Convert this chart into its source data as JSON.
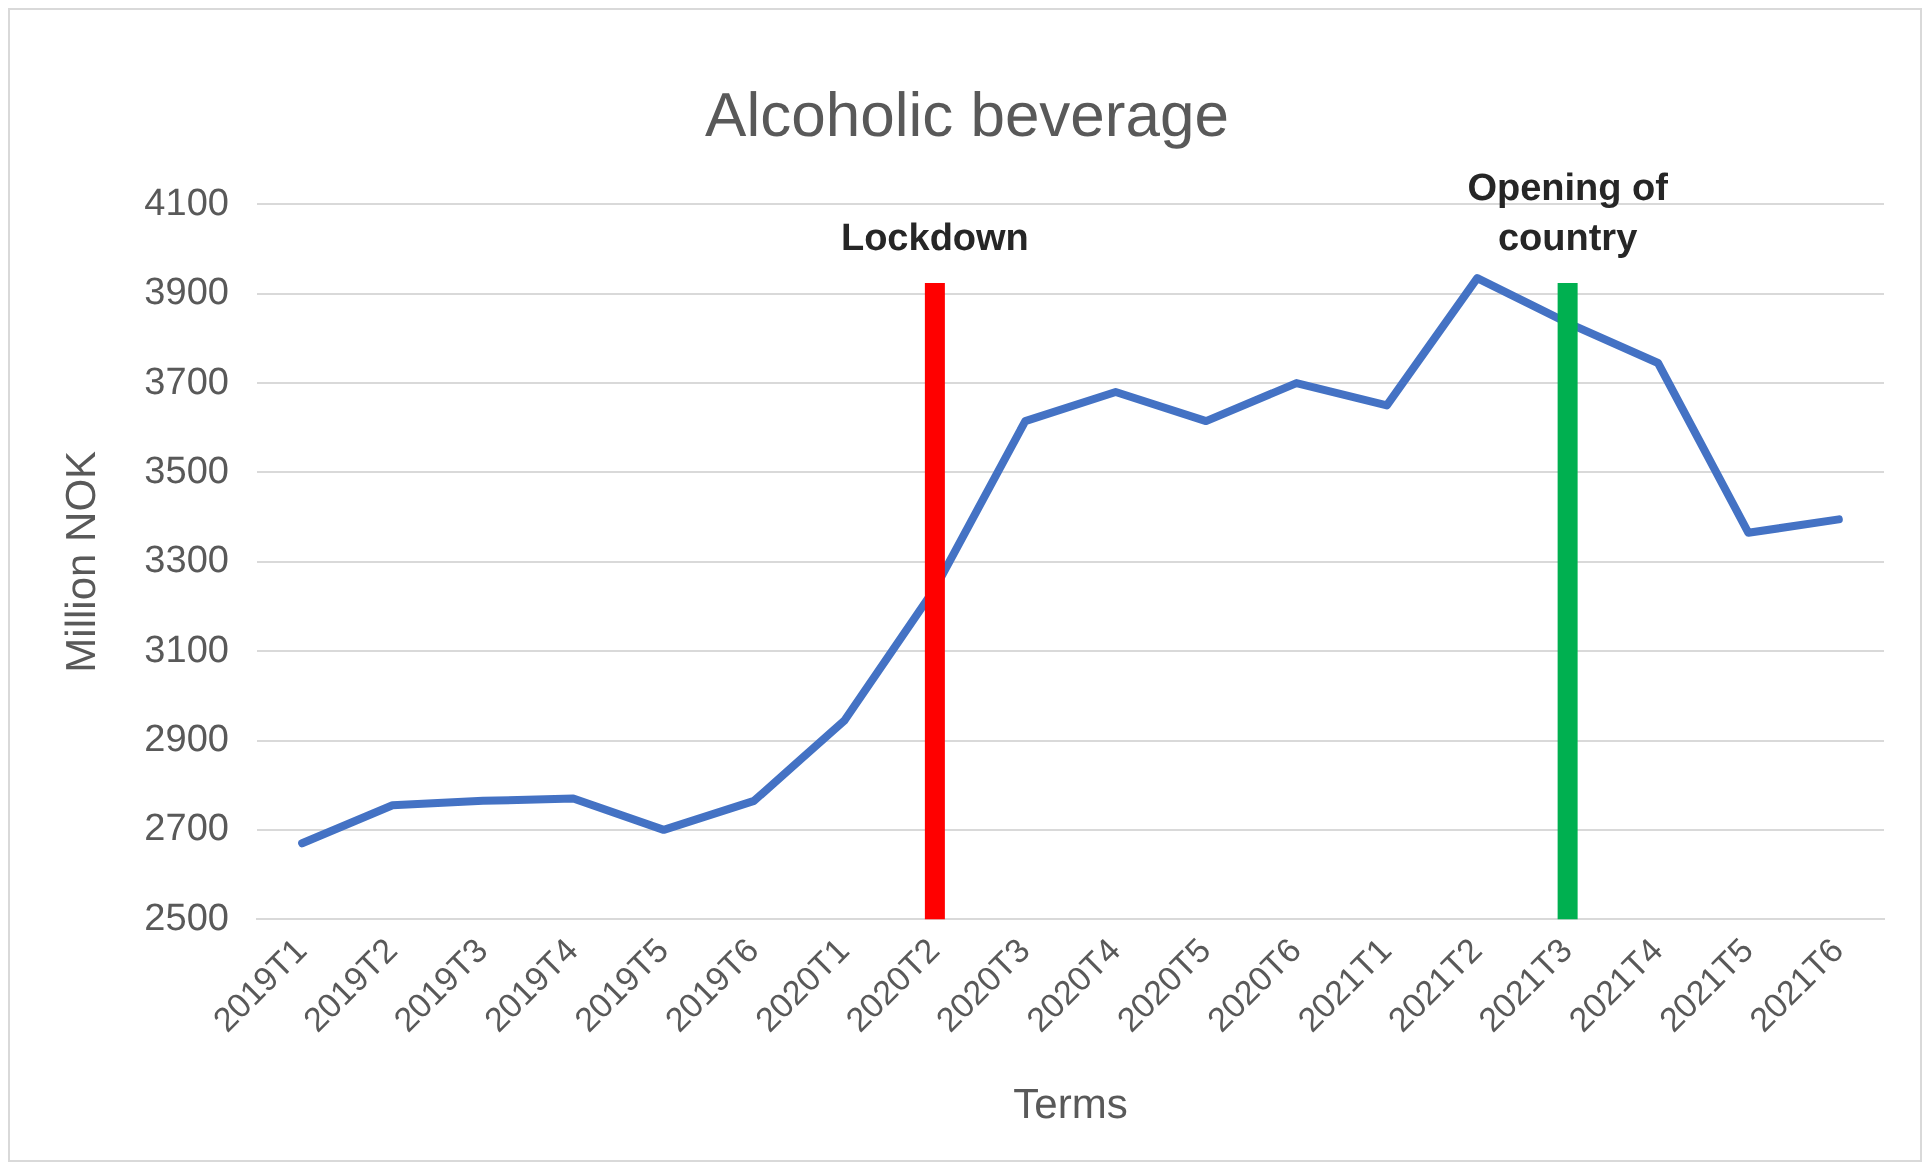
{
  "chart_data": {
    "type": "line",
    "title": "Alcoholic beverage",
    "xlabel": "Terms",
    "ylabel": "Million NOK",
    "categories": [
      "2019T1",
      "2019T2",
      "2019T3",
      "2019T4",
      "2019T5",
      "2019T6",
      "2020T1",
      "2020T2",
      "2020T3",
      "2020T4",
      "2020T5",
      "2020T6",
      "2021T1",
      "2021T2",
      "2021T3",
      "2021T4",
      "2021T5",
      "2021T6"
    ],
    "series": [
      {
        "color": "#4472c4",
        "values": [
          2670,
          2755,
          2765,
          2770,
          2700,
          2765,
          2945,
          3240,
          3615,
          3680,
          3615,
          3700,
          3650,
          3935,
          3835,
          3745,
          3365,
          3395
        ]
      }
    ],
    "ylim": [
      2500,
      4100
    ],
    "yticks": [
      2500,
      2700,
      2900,
      3100,
      3300,
      3500,
      3700,
      3900,
      4100
    ],
    "grid": "y",
    "legend": false,
    "marker": "none",
    "line_style": "solid",
    "ref_lines": [
      {
        "axis": "x",
        "value": "2020T2",
        "label": "Lockdown",
        "color": "#ff0000"
      },
      {
        "axis": "x",
        "value": "2021T3",
        "label": "Opening of country",
        "color": "#00b050"
      }
    ]
  }
}
